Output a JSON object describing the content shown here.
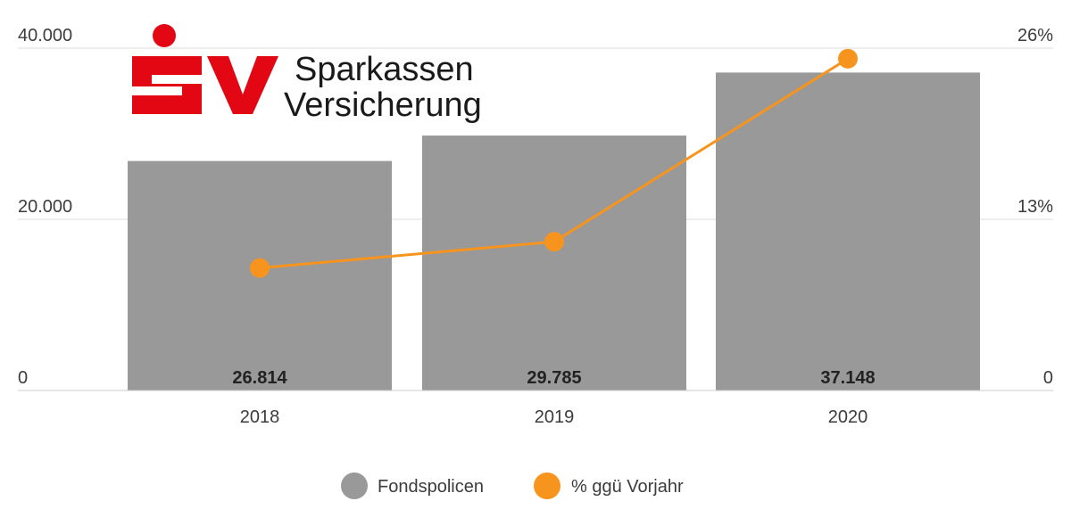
{
  "chart_data": {
    "type": "bar",
    "categories": [
      "2018",
      "2019",
      "2020"
    ],
    "series": [
      {
        "name": "Fondspolicen",
        "kind": "bar",
        "axis": "left",
        "color": "#999999",
        "values": [
          26814,
          29785,
          37148
        ],
        "labels": [
          "26.814",
          "29.785",
          "37.148"
        ]
      },
      {
        "name": "% ggü Vorjahr",
        "kind": "line",
        "axis": "right",
        "color": "#f7941d",
        "values": [
          9.3,
          11.3,
          25.2
        ]
      }
    ],
    "y_left": {
      "min": 0,
      "max": 40000,
      "ticks": [
        0,
        20000,
        40000
      ],
      "tick_labels": [
        "0",
        "20.000",
        "40.000"
      ]
    },
    "y_right": {
      "min": 0,
      "max": 26,
      "ticks": [
        0,
        13,
        26
      ],
      "tick_labels": [
        "0",
        "13%",
        "26%"
      ]
    },
    "grid": true,
    "legend_position": "bottom-center",
    "title": "",
    "xlabel": "",
    "ylabel": ""
  },
  "logo": {
    "name": "Sparkassen Versicherung",
    "line1": "Sparkassen",
    "line2": "Versicherung",
    "color": "#e30613"
  }
}
